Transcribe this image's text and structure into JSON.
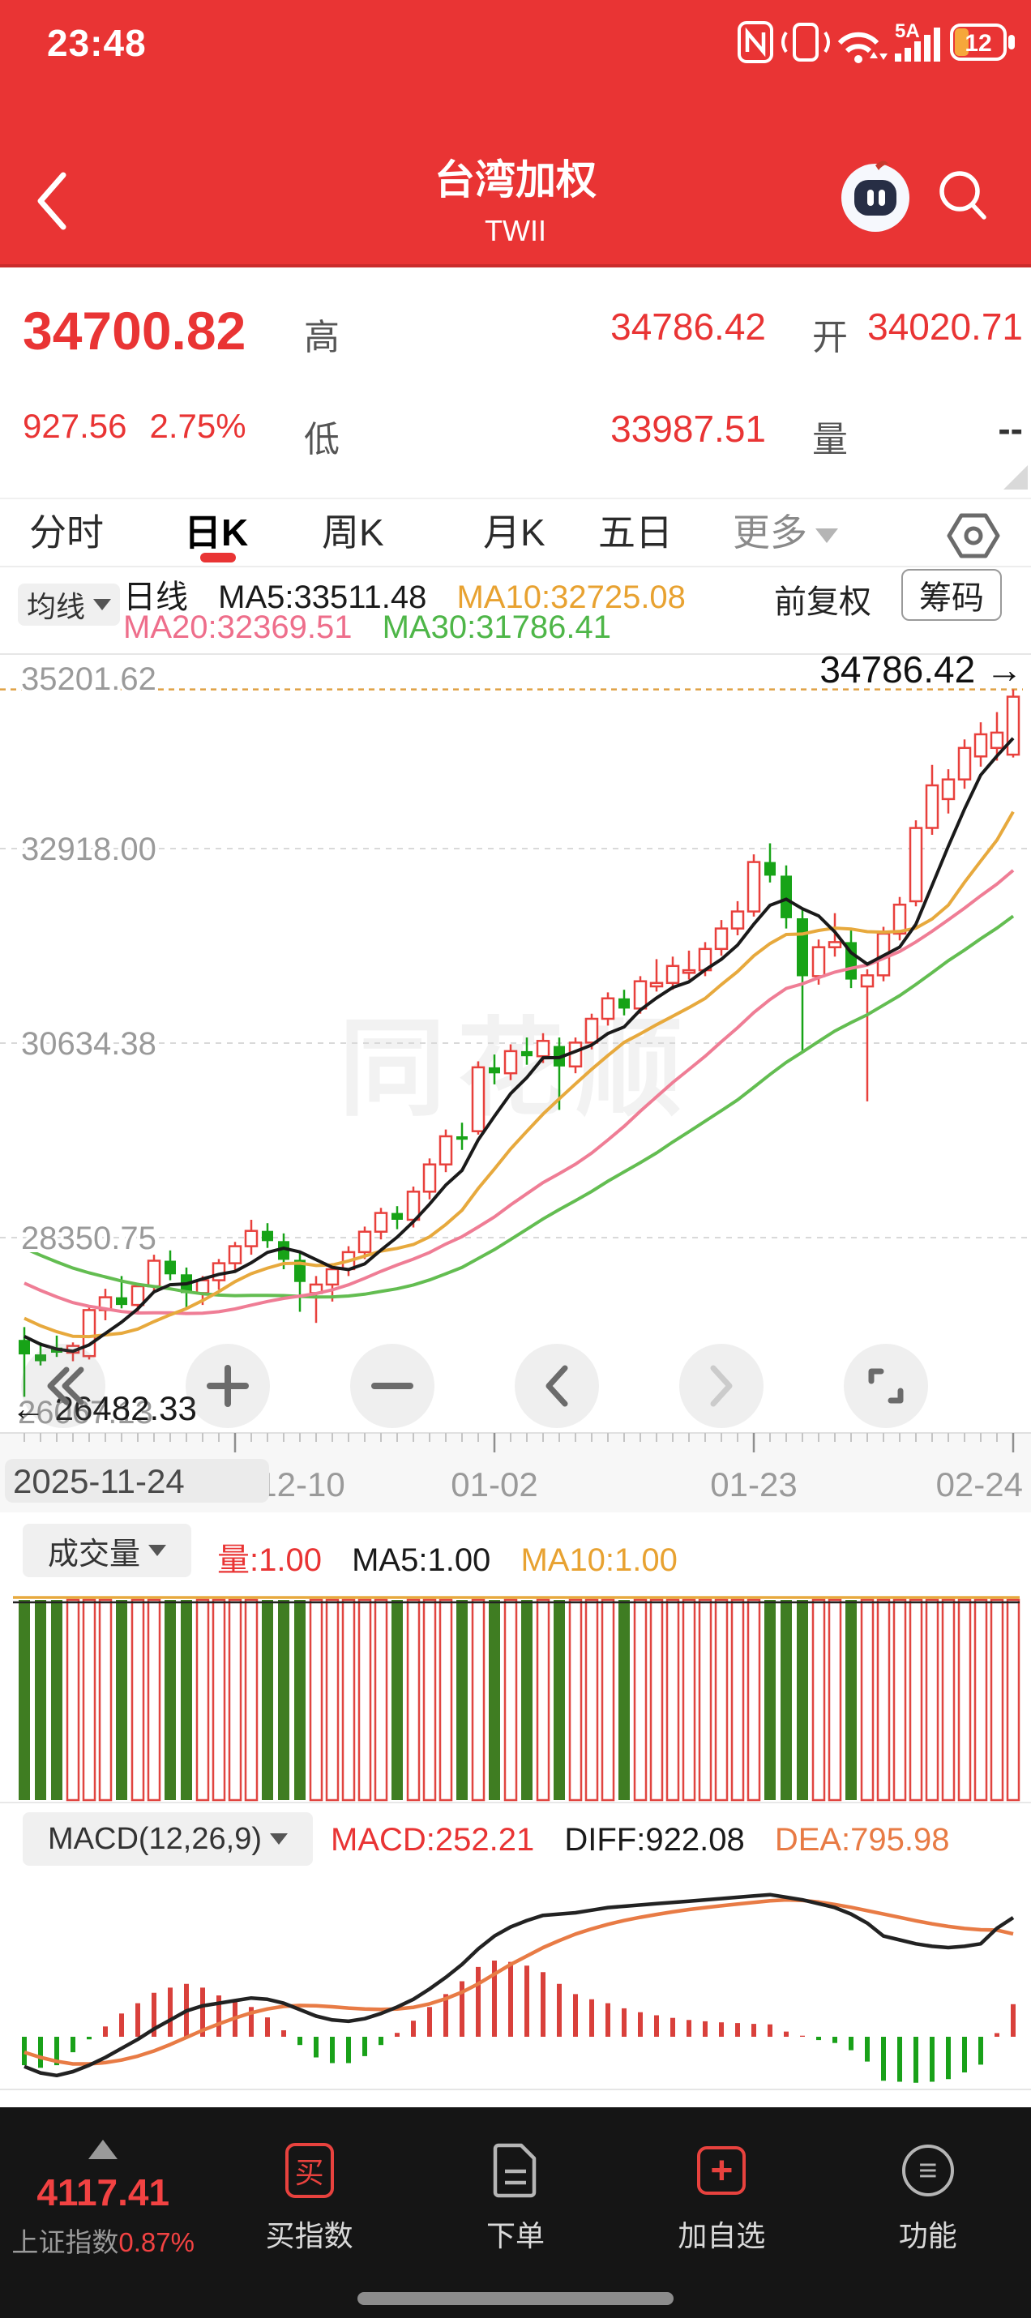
{
  "status_bar": {
    "time": "23:48",
    "network_label": "5A",
    "battery_level": "12"
  },
  "header": {
    "title": "台湾加权",
    "subtitle": "TWII"
  },
  "quote": {
    "price": "34700.82",
    "change": "927.56",
    "change_pct": "2.75%",
    "high_label": "高",
    "high": "34786.42",
    "open_label": "开",
    "open": "34020.71",
    "low_label": "低",
    "low": "33987.51",
    "volume_label": "量",
    "volume": "--"
  },
  "tabs": {
    "items": [
      "分时",
      "日K",
      "周K",
      "月K",
      "五日"
    ],
    "more": "更多",
    "active": "日K"
  },
  "kline_legend": {
    "ma_selector": "均线",
    "period": "日线",
    "ma5": "MA5:33511.48",
    "ma10": "MA10:32725.08",
    "ma20": "MA20:32369.51",
    "ma30": "MA30:31786.41",
    "adjust": "前复权",
    "chips": "筹码"
  },
  "watermark": "同花顺",
  "volume_legend": {
    "selector": "成交量",
    "vol": "量:1.00",
    "ma5": "MA5:1.00",
    "ma10": "MA10:1.00"
  },
  "macd_legend": {
    "selector": "MACD(12,26,9)",
    "macd": "MACD:252.21",
    "diff": "DIFF:922.08",
    "dea": "DEA:795.98"
  },
  "nav": {
    "index_value": "4117.41",
    "index_name": "上证指数",
    "index_pct": "0.87%",
    "buy_icon_char": "买",
    "items": [
      "买指数",
      "下单",
      "加自选",
      "功能"
    ]
  },
  "chart_data": [
    {
      "type": "candlestick",
      "title": "台湾加权 TWII 日K (前复权)",
      "y_ticks": [
        35201.62,
        32918.0,
        30634.38,
        28350.75,
        26067.13
      ],
      "x_tick_labels": [
        "2025-11-24",
        "12-10",
        "01-02",
        "01-23",
        "02-24"
      ],
      "x_tick_indices": [
        13,
        29,
        45,
        61
      ],
      "high_annotation": 34786.42,
      "low_annotation": 26482.33,
      "ma_values": {
        "ma5": 33511.48,
        "ma10": 32725.08,
        "ma20": 32369.51,
        "ma30": 31786.41
      },
      "up_color": "#e8403c",
      "down_color": "#17a317",
      "candles_ohlc": [
        [
          27150,
          27300,
          26482,
          26980
        ],
        [
          26980,
          27120,
          26850,
          26900
        ],
        [
          27060,
          27200,
          26950,
          27000
        ],
        [
          27000,
          27120,
          26900,
          27080
        ],
        [
          26960,
          27560,
          26920,
          27500
        ],
        [
          27500,
          27750,
          27380,
          27650
        ],
        [
          27650,
          27900,
          27520,
          27560
        ],
        [
          27560,
          27820,
          27460,
          27780
        ],
        [
          27780,
          28150,
          27700,
          28080
        ],
        [
          28080,
          28200,
          27850,
          27920
        ],
        [
          27920,
          28000,
          27520,
          27700
        ],
        [
          27700,
          27900,
          27560,
          27850
        ],
        [
          27850,
          28100,
          27740,
          28050
        ],
        [
          28050,
          28300,
          27950,
          28250
        ],
        [
          28250,
          28560,
          28150,
          28430
        ],
        [
          28430,
          28520,
          28230,
          28310
        ],
        [
          28310,
          28400,
          27980,
          28090
        ],
        [
          28090,
          28180,
          27480,
          27830
        ],
        [
          27700,
          27900,
          27350,
          27800
        ],
        [
          27800,
          28050,
          27600,
          27980
        ],
        [
          27980,
          28250,
          27900,
          28180
        ],
        [
          28180,
          28480,
          28100,
          28420
        ],
        [
          28420,
          28700,
          28330,
          28640
        ],
        [
          28640,
          28720,
          28450,
          28560
        ],
        [
          28560,
          28950,
          28470,
          28890
        ],
        [
          28890,
          29280,
          28800,
          29210
        ],
        [
          29210,
          29620,
          29120,
          29540
        ],
        [
          29540,
          29700,
          29380,
          29500
        ],
        [
          29600,
          30420,
          29560,
          30350
        ],
        [
          30350,
          30500,
          30150,
          30280
        ],
        [
          30280,
          30620,
          30200,
          30540
        ],
        [
          30540,
          30700,
          30380,
          30480
        ],
        [
          30480,
          30750,
          30400,
          30660
        ],
        [
          30600,
          30700,
          29850,
          30360
        ],
        [
          30360,
          30700,
          30280,
          30640
        ],
        [
          30640,
          30980,
          30560,
          30920
        ],
        [
          30920,
          31230,
          30840,
          31160
        ],
        [
          31160,
          31260,
          30960,
          31040
        ],
        [
          31040,
          31420,
          30980,
          31360
        ],
        [
          31300,
          31620,
          31240,
          31340
        ],
        [
          31340,
          31650,
          31260,
          31540
        ],
        [
          31460,
          31720,
          31380,
          31490
        ],
        [
          31490,
          31820,
          31420,
          31740
        ],
        [
          31740,
          32080,
          31660,
          31980
        ],
        [
          31980,
          32300,
          31900,
          32180
        ],
        [
          32180,
          32850,
          32120,
          32760
        ],
        [
          32760,
          32980,
          32520,
          32600
        ],
        [
          32600,
          32720,
          31980,
          32100
        ],
        [
          32100,
          32220,
          30520,
          31420
        ],
        [
          31420,
          31850,
          31320,
          31760
        ],
        [
          31760,
          32160,
          31650,
          31820
        ],
        [
          31820,
          31960,
          31280,
          31380
        ],
        [
          31300,
          31500,
          29950,
          31430
        ],
        [
          31430,
          32000,
          31360,
          31920
        ],
        [
          31920,
          32350,
          31840,
          32260
        ],
        [
          32300,
          33250,
          32240,
          33160
        ],
        [
          33160,
          33900,
          33080,
          33660
        ],
        [
          33500,
          33850,
          33330,
          33730
        ],
        [
          33730,
          34200,
          33620,
          34100
        ],
        [
          34000,
          34400,
          33880,
          34260
        ],
        [
          34100,
          34520,
          33950,
          34280
        ],
        [
          34020.71,
          34786.42,
          33987.51,
          34700.82
        ]
      ]
    },
    {
      "type": "bar",
      "title": "成交量",
      "uniform_value": 1.0,
      "ma5": 1.0,
      "ma10": 1.0,
      "note": "all volume bars equal at 1.00; color follows candle direction"
    },
    {
      "type": "macd",
      "title": "MACD(12,26,9)",
      "macd": 252.21,
      "diff": 922.08,
      "dea": 795.98,
      "diff_series": [
        -230,
        -280,
        -300,
        -270,
        -220,
        -160,
        -90,
        -20,
        60,
        130,
        200,
        240,
        260,
        280,
        300,
        290,
        260,
        210,
        160,
        130,
        120,
        140,
        180,
        230,
        290,
        370,
        460,
        560,
        680,
        780,
        850,
        900,
        940,
        950,
        960,
        980,
        1000,
        1010,
        1020,
        1030,
        1040,
        1050,
        1060,
        1070,
        1080,
        1090,
        1100,
        1080,
        1060,
        1030,
        1000,
        950,
        880,
        780,
        750,
        720,
        700,
        690,
        700,
        720,
        840,
        922.08
      ],
      "dea_series": [
        -120,
        -160,
        -190,
        -210,
        -210,
        -200,
        -180,
        -150,
        -110,
        -60,
        -5,
        50,
        100,
        145,
        185,
        215,
        235,
        242,
        240,
        232,
        222,
        215,
        212,
        215,
        228,
        255,
        295,
        345,
        410,
        485,
        560,
        625,
        690,
        745,
        795,
        835,
        870,
        900,
        925,
        947,
        967,
        985,
        1000,
        1014,
        1027,
        1040,
        1052,
        1060,
        1056,
        1043,
        1024,
        1002,
        976,
        950,
        924,
        898,
        874,
        854,
        838,
        828,
        826,
        795.98
      ],
      "hist_rule": "hist = 2 * (diff - dea)"
    }
  ]
}
